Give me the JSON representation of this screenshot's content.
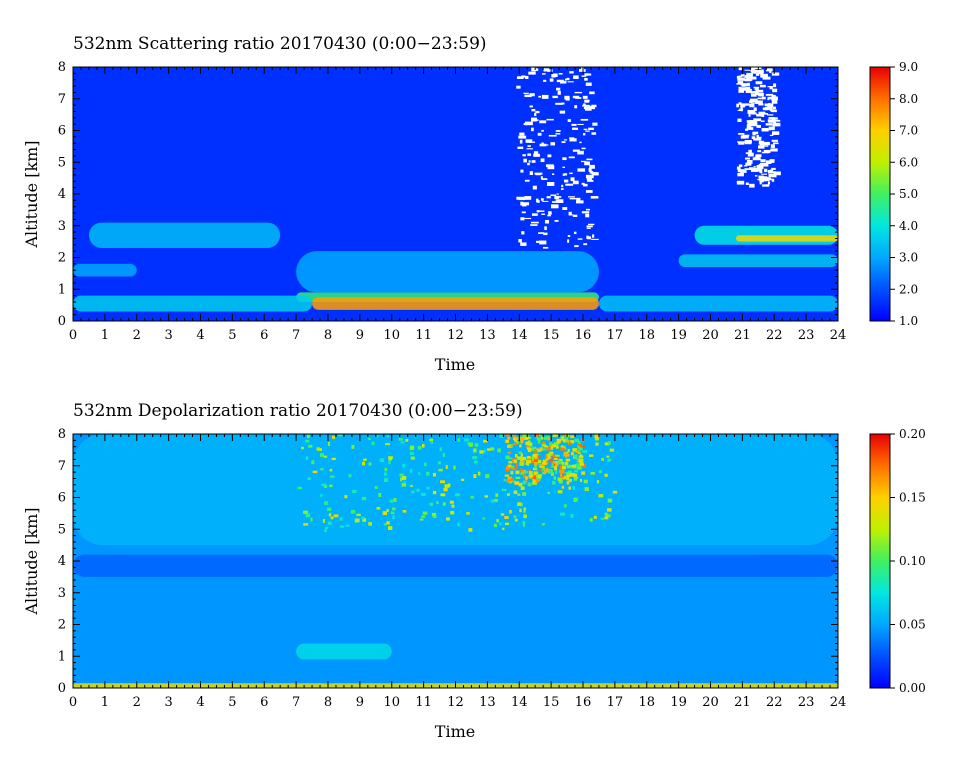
{
  "chart_data": [
    {
      "type": "heatmap",
      "title": "532nm Scattering ratio  20170430 (0:00−23:59)",
      "xlabel": "Time",
      "ylabel": "Altitude [km]",
      "xlim": [
        0,
        24
      ],
      "ylim": [
        0,
        8
      ],
      "x_ticks": [
        0,
        1,
        2,
        3,
        4,
        5,
        6,
        7,
        8,
        9,
        10,
        11,
        12,
        13,
        14,
        15,
        16,
        17,
        18,
        19,
        20,
        21,
        22,
        23,
        24
      ],
      "y_ticks": [
        0,
        1,
        2,
        3,
        4,
        5,
        6,
        7,
        8
      ],
      "colorbar": {
        "min": 1.0,
        "max": 9.0,
        "ticks": [
          "1.0",
          "2.0",
          "3.0",
          "4.0",
          "5.0",
          "6.0",
          "7.0",
          "8.0",
          "9.0"
        ],
        "colormap": "jet"
      },
      "background_value": 1.6,
      "features": [
        {
          "kind": "layer",
          "value": 4.8,
          "t": [
            7,
            16.5
          ],
          "alt": [
            0.6,
            0.9
          ],
          "note": "strong aerosol layer"
        },
        {
          "kind": "layer",
          "value": 7.5,
          "t": [
            7.5,
            16.5
          ],
          "alt": [
            0.35,
            0.75
          ]
        },
        {
          "kind": "layer",
          "value": 3.6,
          "t": [
            0,
            7.5
          ],
          "alt": [
            0.3,
            0.8
          ]
        },
        {
          "kind": "layer",
          "value": 3.4,
          "t": [
            16.5,
            24
          ],
          "alt": [
            0.3,
            0.8
          ]
        },
        {
          "kind": "layer",
          "value": 3.3,
          "t": [
            0.5,
            6.5
          ],
          "alt": [
            2.3,
            3.1
          ]
        },
        {
          "kind": "layer",
          "value": 3.0,
          "t": [
            0,
            2.0
          ],
          "alt": [
            1.4,
            1.8
          ]
        },
        {
          "kind": "layer",
          "value": 4.0,
          "t": [
            19.5,
            24
          ],
          "alt": [
            2.4,
            3.0
          ]
        },
        {
          "kind": "layer",
          "value": 6.8,
          "t": [
            20.8,
            24
          ],
          "alt": [
            2.5,
            2.7
          ]
        },
        {
          "kind": "layer",
          "value": 3.5,
          "t": [
            19,
            24
          ],
          "alt": [
            1.7,
            2.1
          ]
        },
        {
          "kind": "layer",
          "value": 3.0,
          "t": [
            7,
            16.5
          ],
          "alt": [
            0.9,
            2.2
          ]
        },
        {
          "kind": "cloud",
          "value": null,
          "t": [
            13.9,
            16.3
          ],
          "alt": [
            2.3,
            8.0
          ],
          "note": "white (saturated / no data)"
        },
        {
          "kind": "cloud",
          "value": null,
          "t": [
            20.8,
            22.0
          ],
          "alt": [
            4.3,
            8.0
          ],
          "note": "white (saturated / no data)"
        }
      ]
    },
    {
      "type": "heatmap",
      "title": "532nm Depolarization ratio  20170430 (0:00−23:59)",
      "xlabel": "Time",
      "ylabel": "Altitude [km]",
      "xlim": [
        0,
        24
      ],
      "ylim": [
        0,
        8
      ],
      "x_ticks": [
        0,
        1,
        2,
        3,
        4,
        5,
        6,
        7,
        8,
        9,
        10,
        11,
        12,
        13,
        14,
        15,
        16,
        17,
        18,
        19,
        20,
        21,
        22,
        23,
        24
      ],
      "y_ticks": [
        0,
        1,
        2,
        3,
        4,
        5,
        6,
        7,
        8
      ],
      "colorbar": {
        "min": 0.0,
        "max": 0.2,
        "ticks": [
          "0.00",
          "0.05",
          "0.10",
          "0.15",
          "0.20"
        ],
        "colormap": "jet"
      },
      "background_value": 0.045,
      "features": [
        {
          "kind": "layer",
          "value": 0.07,
          "t": [
            7,
            10
          ],
          "alt": [
            0.9,
            1.4
          ]
        },
        {
          "kind": "layer",
          "value": 0.055,
          "t": [
            0,
            24
          ],
          "alt": [
            4.5,
            8.0
          ]
        },
        {
          "kind": "layer",
          "value": 0.03,
          "t": [
            0,
            24
          ],
          "alt": [
            3.5,
            4.2
          ]
        },
        {
          "kind": "speckle",
          "value": 0.12,
          "t": [
            7,
            17
          ],
          "alt": [
            5.0,
            8.0
          ]
        },
        {
          "kind": "speckle",
          "value": 0.15,
          "t": [
            13.5,
            16
          ],
          "alt": [
            6.5,
            8.0
          ]
        },
        {
          "kind": "layer",
          "value": 0.14,
          "t": [
            0,
            24
          ],
          "alt": [
            0.0,
            0.15
          ],
          "note": "surface noise"
        }
      ]
    }
  ]
}
